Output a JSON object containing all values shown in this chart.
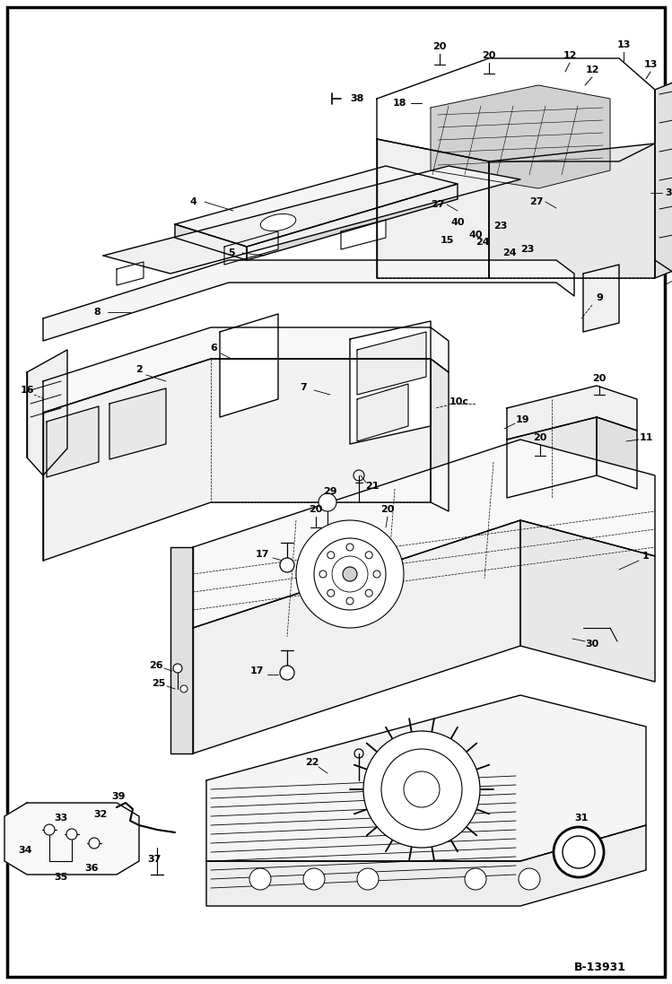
{
  "bg_color": "#ffffff",
  "border_color": "#000000",
  "line_color": "#000000",
  "fig_width": 7.49,
  "fig_height": 10.97,
  "dpi": 100,
  "diagram_id": "B-13931",
  "lw": 1.0,
  "lw_thin": 0.5,
  "lw_thick": 1.5,
  "fs_label": 8,
  "fs_id": 9
}
